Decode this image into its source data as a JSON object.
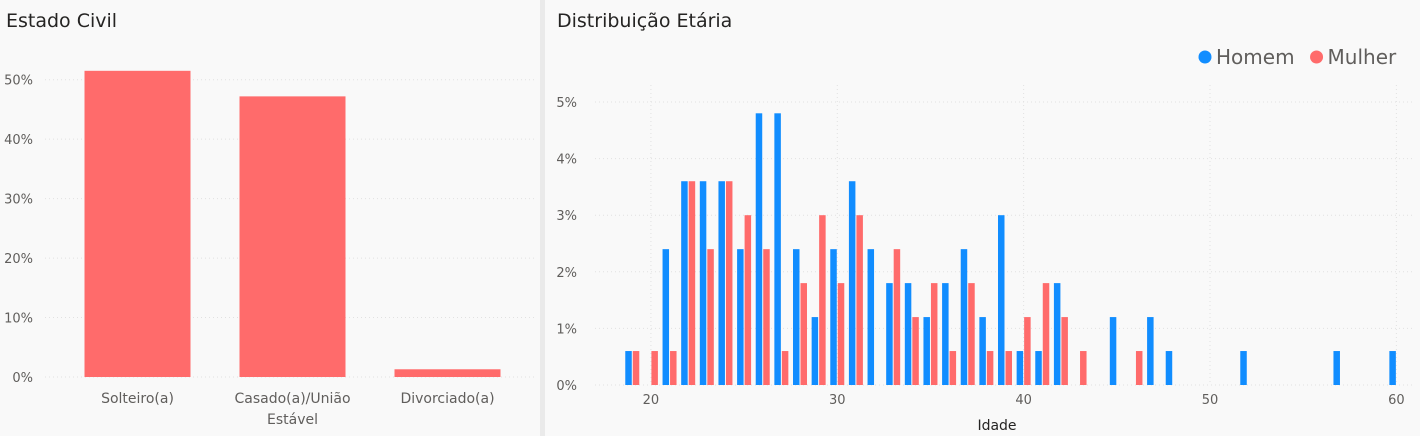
{
  "chart_data": [
    {
      "type": "bar",
      "title": "Estado Civil",
      "categories": [
        "Solteiro(a)",
        "Casado(a)/União Estável",
        "Divorciado(a)"
      ],
      "category_lines": [
        [
          "Solteiro(a)"
        ],
        [
          "Casado(a)/União",
          "Estável"
        ],
        [
          "Divorciado(a)"
        ]
      ],
      "values": [
        51.5,
        47.2,
        1.3
      ],
      "ylim": [
        0,
        55
      ],
      "yticks": [
        0,
        10,
        20,
        30,
        40,
        50
      ],
      "ytick_labels": [
        "0%",
        "10%",
        "20%",
        "30%",
        "40%",
        "50%"
      ],
      "color": "#FF6B6B",
      "grid": true
    },
    {
      "type": "bar",
      "title": "Distribuição Etária",
      "xlabel": "Idade",
      "xlim": [
        17,
        61
      ],
      "xticks": [
        20,
        30,
        40,
        50,
        60
      ],
      "xtick_labels": [
        "20",
        "30",
        "40",
        "50",
        "60"
      ],
      "ylim": [
        0,
        5.3
      ],
      "yticks": [
        0,
        1,
        2,
        3,
        4,
        5
      ],
      "ytick_labels": [
        "0%",
        "1%",
        "2%",
        "3%",
        "4%",
        "5%"
      ],
      "legend_position": "top-right",
      "grid": true,
      "x": [
        19,
        20,
        21,
        22,
        23,
        24,
        25,
        26,
        27,
        28,
        29,
        30,
        31,
        32,
        33,
        34,
        35,
        36,
        37,
        38,
        39,
        40,
        41,
        42,
        43,
        44,
        45,
        46,
        47,
        48,
        49,
        50,
        51,
        52,
        53,
        54,
        55,
        56,
        57,
        58,
        59,
        60
      ],
      "series": [
        {
          "name": "Homem",
          "color": "#118DFF",
          "values": [
            0.6,
            0,
            2.4,
            3.6,
            3.6,
            3.6,
            2.4,
            4.8,
            4.8,
            2.4,
            1.2,
            2.4,
            3.6,
            2.4,
            1.8,
            1.8,
            1.2,
            1.8,
            2.4,
            1.2,
            3.0,
            0.6,
            0.6,
            1.8,
            0,
            0,
            1.2,
            0,
            1.2,
            0.6,
            0,
            0,
            0,
            0.6,
            0,
            0,
            0,
            0,
            0.6,
            0,
            0,
            0.6
          ]
        },
        {
          "name": "Mulher",
          "color": "#FF6B6B",
          "values": [
            0.6,
            0.6,
            0.6,
            3.6,
            2.4,
            3.6,
            3.0,
            2.4,
            0.6,
            1.8,
            3.0,
            1.8,
            3.0,
            0,
            2.4,
            1.2,
            1.8,
            0.6,
            1.8,
            0.6,
            0.6,
            1.2,
            1.8,
            1.2,
            0.6,
            0,
            0,
            0.6,
            0,
            0,
            0,
            0,
            0,
            0,
            0,
            0,
            0,
            0,
            0,
            0,
            0,
            0
          ]
        }
      ]
    }
  ]
}
